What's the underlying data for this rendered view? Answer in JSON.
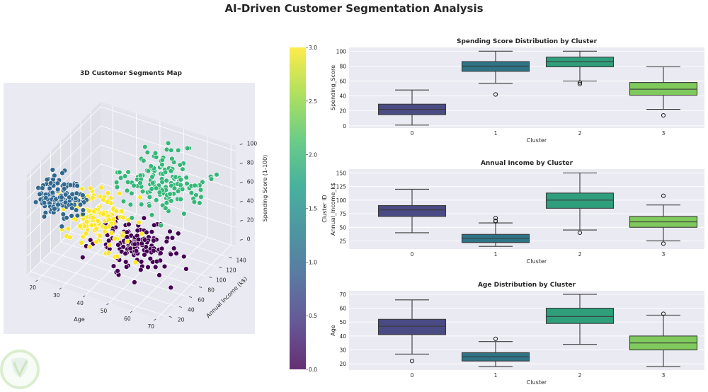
{
  "title": "AI-Driven Customer Segmentation Analysis",
  "chart_data": [
    {
      "type": "scatter3d",
      "title": "3D Customer Segments Map",
      "xlabel": "Age",
      "ylabel": "Annual Income (k$)",
      "zlabel": "Spending Score (1-100)",
      "xticks": [
        20,
        30,
        40,
        50,
        60,
        70
      ],
      "yticks": [
        20,
        40,
        60,
        80,
        100,
        120,
        140
      ],
      "zticks": [
        0,
        20,
        40,
        60,
        80,
        100
      ],
      "xlim": [
        15,
        72
      ],
      "ylim": [
        12,
        160
      ],
      "zlim": [
        0,
        105
      ],
      "cluster_colors": [
        "#440154",
        "#31688e",
        "#35b779",
        "#fde725"
      ],
      "colorbar": {
        "label": "Cluster ID",
        "colormap": "viridis",
        "range": [
          0,
          3
        ],
        "ticks": [
          "0.0",
          "0.5",
          "1.0",
          "1.5",
          "2.0",
          "2.5",
          "3.0"
        ]
      }
    },
    {
      "type": "box",
      "title": "Spending Score Distribution by Cluster",
      "xlabel": "Cluster",
      "ylabel": "Spending_Score",
      "categories": [
        "0",
        "1",
        "2",
        "3"
      ],
      "yticks": [
        0,
        20,
        40,
        60,
        80,
        100
      ],
      "ylim": [
        -3,
        105
      ],
      "grid": true,
      "colors": [
        "#4a4a85",
        "#2e7486",
        "#2f9e7b",
        "#7fc95d"
      ],
      "boxes": [
        {
          "min": 1,
          "q1": 15,
          "median": 22,
          "q3": 29,
          "max": 48,
          "outliers": []
        },
        {
          "min": 57,
          "q1": 73,
          "median": 80,
          "q3": 86,
          "max": 100,
          "outliers": [
            42
          ]
        },
        {
          "min": 60,
          "q1": 79,
          "median": 86,
          "q3": 92,
          "max": 100,
          "outliers": [
            56,
            58
          ]
        },
        {
          "min": 22,
          "q1": 41,
          "median": 49,
          "q3": 58,
          "max": 79,
          "outliers": [
            14
          ]
        }
      ]
    },
    {
      "type": "box",
      "title": "Annual Income by Cluster",
      "xlabel": "Cluster",
      "ylabel": "Annual_Income_k$",
      "categories": [
        "0",
        "1",
        "2",
        "3"
      ],
      "yticks": [
        25,
        50,
        75,
        100,
        125,
        150
      ],
      "ylim": [
        10,
        157
      ],
      "grid": true,
      "colors": [
        "#4a4a85",
        "#2e7486",
        "#2f9e7b",
        "#7fc95d"
      ],
      "boxes": [
        {
          "min": 40,
          "q1": 70,
          "median": 82,
          "q3": 90,
          "max": 120,
          "outliers": []
        },
        {
          "min": 15,
          "q1": 22,
          "median": 30,
          "q3": 37,
          "max": 58,
          "outliers": [
            61,
            62,
            67
          ]
        },
        {
          "min": 45,
          "q1": 85,
          "median": 100,
          "q3": 113,
          "max": 150,
          "outliers": [
            40
          ]
        },
        {
          "min": 25,
          "q1": 50,
          "median": 60,
          "q3": 70,
          "max": 91,
          "outliers": [
            20,
            108
          ]
        }
      ]
    },
    {
      "type": "box",
      "title": "Age Distribution by Cluster",
      "xlabel": "Cluster",
      "ylabel": "Age",
      "categories": [
        "0",
        "1",
        "2",
        "3"
      ],
      "yticks": [
        20,
        30,
        40,
        50,
        60,
        70
      ],
      "ylim": [
        15.5,
        72.5
      ],
      "grid": true,
      "colors": [
        "#4a4a85",
        "#2e7486",
        "#2f9e7b",
        "#7fc95d"
      ],
      "boxes": [
        {
          "min": 27,
          "q1": 41,
          "median": 47,
          "q3": 52,
          "max": 66,
          "outliers": [
            22
          ]
        },
        {
          "min": 18,
          "q1": 22,
          "median": 25,
          "q3": 28,
          "max": 36,
          "outliers": [
            38
          ]
        },
        {
          "min": 34,
          "q1": 49,
          "median": 54,
          "q3": 60,
          "max": 70,
          "outliers": []
        },
        {
          "min": 18,
          "q1": 30,
          "median": 35,
          "q3": 40,
          "max": 55,
          "outliers": [
            56
          ]
        }
      ]
    }
  ]
}
